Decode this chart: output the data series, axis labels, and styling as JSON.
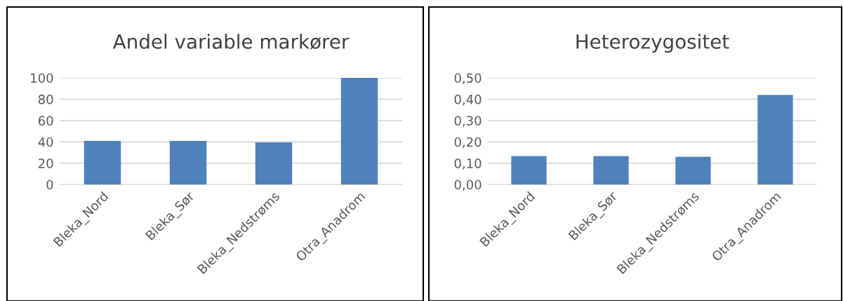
{
  "chart_data": [
    {
      "type": "bar",
      "title": "Andel variable markører",
      "categories": [
        "Bleka_Nord",
        "Bleka_Sør",
        "Bleka_Nedstrøms",
        "Otra_Anadrom"
      ],
      "values": [
        41,
        41,
        39.5,
        100
      ],
      "color": "#4f81bd",
      "ylim": [
        0,
        100
      ],
      "yticks": [
        0,
        20,
        40,
        60,
        80,
        100
      ],
      "grid": "y"
    },
    {
      "type": "bar",
      "title": "Heterozygositet",
      "categories": [
        "Bleka_Nord",
        "Bleka_Sør",
        "Bleka_Nedstrøms",
        "Otra_Anadrom"
      ],
      "values": [
        0.133,
        0.133,
        0.13,
        0.42
      ],
      "color": "#4f81bd",
      "ylim": [
        0,
        0.5
      ],
      "yticks": [
        {
          "value": 0,
          "label": "0,00"
        },
        {
          "value": 0.1,
          "label": "0,10"
        },
        {
          "value": 0.2,
          "label": "0,20"
        },
        {
          "value": 0.3,
          "label": "0,30"
        },
        {
          "value": 0.4,
          "label": "0,40"
        },
        {
          "value": 0.5,
          "label": "0,50"
        }
      ],
      "grid": "y"
    }
  ]
}
